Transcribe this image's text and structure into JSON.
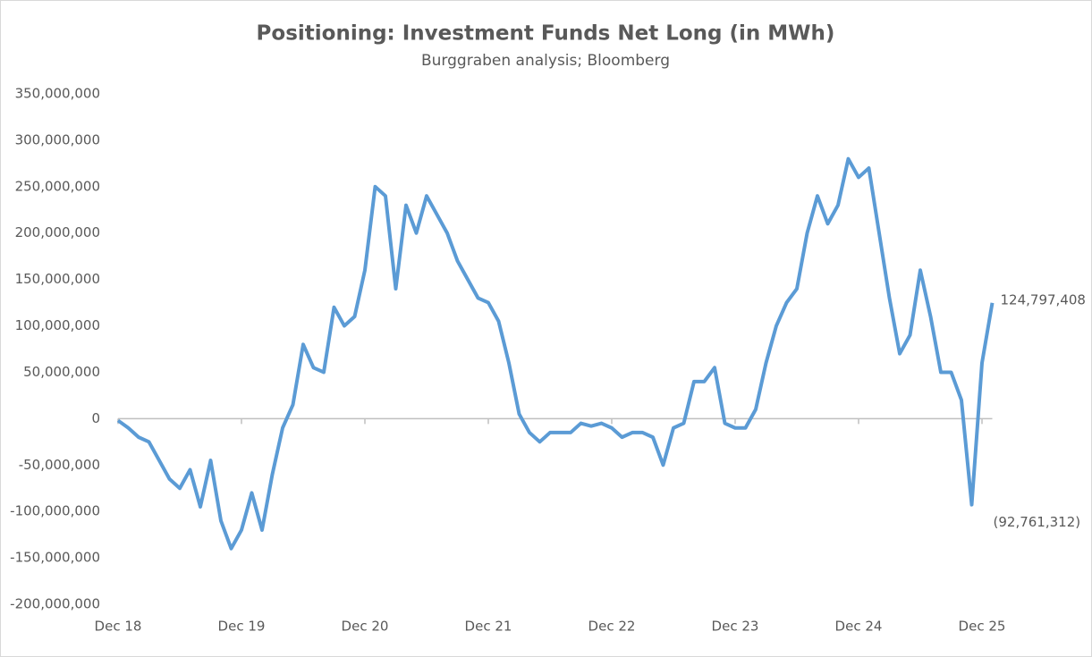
{
  "chart_data": {
    "type": "line",
    "title": "Positioning: Investment Funds Net Long (in MWh)",
    "subtitle": "Burggraben analysis; Bloomberg",
    "categories": [
      "Dec 18",
      null,
      null,
      null,
      null,
      null,
      null,
      null,
      null,
      null,
      null,
      null,
      "Dec 19",
      null,
      null,
      null,
      null,
      null,
      null,
      null,
      null,
      null,
      null,
      null,
      "Dec 20",
      null,
      null,
      null,
      null,
      null,
      null,
      null,
      null,
      null,
      null,
      null,
      "Dec 21",
      null,
      null,
      null,
      null,
      null,
      null,
      null,
      null,
      null,
      null,
      null,
      "Dec 22",
      null,
      null,
      null,
      null,
      null,
      null,
      null,
      null,
      null,
      null,
      null,
      "Dec 23",
      null,
      null,
      null,
      null,
      null,
      null,
      null,
      null,
      null,
      null,
      null,
      "Dec 24",
      null,
      null,
      null,
      null,
      null,
      null,
      null,
      null,
      null,
      null,
      null,
      "Dec 25",
      null
    ],
    "series": [
      {
        "name": "Investment Funds Net Long",
        "color": "#5b9bd5",
        "values": [
          -2000000,
          -10000000,
          -20000000,
          -25000000,
          -45000000,
          -65000000,
          -75000000,
          -55000000,
          -95000000,
          -45000000,
          -110000000,
          -140000000,
          -120000000,
          -80000000,
          -120000000,
          -60000000,
          -10000000,
          15000000,
          80000000,
          55000000,
          50000000,
          120000000,
          100000000,
          110000000,
          160000000,
          250000000,
          240000000,
          140000000,
          230000000,
          200000000,
          240000000,
          220000000,
          200000000,
          170000000,
          150000000,
          130000000,
          125000000,
          105000000,
          60000000,
          5000000,
          -15000000,
          -25000000,
          -15000000,
          -15000000,
          -15000000,
          -5000000,
          -8000000,
          -5000000,
          -10000000,
          -20000000,
          -15000000,
          -15000000,
          -20000000,
          -50000000,
          -10000000,
          -5000000,
          40000000,
          40000000,
          55000000,
          -5000000,
          -10000000,
          -10000000,
          10000000,
          60000000,
          100000000,
          125000000,
          140000000,
          200000000,
          240000000,
          210000000,
          230000000,
          280000000,
          260000000,
          270000000,
          200000000,
          130000000,
          70000000,
          90000000,
          160000000,
          110000000,
          50000000,
          50000000,
          20000000,
          -92761312,
          60000000,
          124797408
        ],
        "value_labels": [
          null,
          null,
          null,
          null,
          null,
          null,
          null,
          null,
          null,
          null,
          null,
          null,
          null,
          null,
          null,
          null,
          null,
          null,
          null,
          null,
          null,
          null,
          null,
          null,
          null,
          null,
          null,
          null,
          null,
          null,
          null,
          null,
          null,
          null,
          null,
          null,
          null,
          null,
          null,
          null,
          null,
          null,
          null,
          null,
          null,
          null,
          null,
          null,
          null,
          null,
          null,
          null,
          null,
          null,
          null,
          null,
          null,
          null,
          null,
          null,
          null,
          null,
          null,
          null,
          null,
          null,
          null,
          null,
          null,
          null,
          null,
          null,
          null,
          null,
          null,
          null,
          null,
          null,
          null,
          null,
          null,
          null,
          null,
          "(92,761,312)",
          null,
          "124,797,408"
        ]
      }
    ],
    "ylim": [
      -200000000,
      350000000
    ],
    "yticks": [
      {
        "value": -200000000,
        "label": "-200,000,000"
      },
      {
        "value": -150000000,
        "label": "-150,000,000"
      },
      {
        "value": -100000000,
        "label": "-100,000,000"
      },
      {
        "value": -50000000,
        "label": "-50,000,000"
      },
      0,
      {
        "value": 50000000,
        "label": "50,000,000"
      },
      {
        "value": 100000000,
        "label": "100,000,000"
      },
      {
        "value": 150000000,
        "label": "150,000,000"
      },
      {
        "value": 200000000,
        "label": "200,000,000"
      },
      {
        "value": 250000000,
        "label": "250,000,000"
      },
      {
        "value": 300000000,
        "label": "300,000,000"
      },
      {
        "value": 350000000,
        "label": "350,000,000"
      }
    ],
    "grid": false
  }
}
